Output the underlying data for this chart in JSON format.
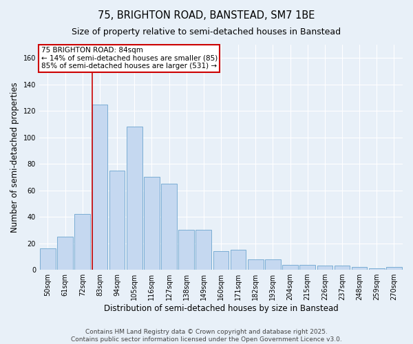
{
  "title1": "75, BRIGHTON ROAD, BANSTEAD, SM7 1BE",
  "title2": "Size of property relative to semi-detached houses in Banstead",
  "xlabel": "Distribution of semi-detached houses by size in Banstead",
  "ylabel": "Number of semi-detached properties",
  "categories": [
    "50sqm",
    "61sqm",
    "72sqm",
    "83sqm",
    "94sqm",
    "105sqm",
    "116sqm",
    "127sqm",
    "138sqm",
    "149sqm",
    "160sqm",
    "171sqm",
    "182sqm",
    "193sqm",
    "204sqm",
    "215sqm",
    "226sqm",
    "237sqm",
    "248sqm",
    "259sqm",
    "270sqm"
  ],
  "values": [
    16,
    25,
    42,
    125,
    75,
    108,
    70,
    65,
    30,
    30,
    14,
    15,
    8,
    8,
    4,
    4,
    3,
    3,
    2,
    1,
    2
  ],
  "bar_color": "#c5d8f0",
  "bar_edge_color": "#7aadd4",
  "property_label": "75 BRIGHTON ROAD: 84sqm",
  "annotation_line1": "← 14% of semi-detached houses are smaller (85)",
  "annotation_line2": "85% of semi-detached houses are larger (531) →",
  "red_line_color": "#cc0000",
  "annotation_box_color": "#ffffff",
  "annotation_box_edge_color": "#cc0000",
  "ylim": [
    0,
    170
  ],
  "footer1": "Contains HM Land Registry data © Crown copyright and database right 2025.",
  "footer2": "Contains public sector information licensed under the Open Government Licence v3.0.",
  "background_color": "#e8f0f8",
  "plot_background_color": "#e8f0f8",
  "title_fontsize": 10.5,
  "subtitle_fontsize": 9,
  "tick_fontsize": 7,
  "axis_label_fontsize": 8.5,
  "footer_fontsize": 6.5,
  "annotation_fontsize": 7.5,
  "red_bar_index": 3
}
